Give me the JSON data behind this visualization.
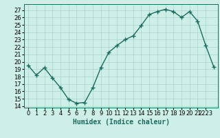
{
  "x": [
    0,
    1,
    2,
    3,
    4,
    5,
    6,
    7,
    8,
    9,
    10,
    11,
    12,
    13,
    14,
    15,
    16,
    17,
    18,
    19,
    20,
    21,
    22,
    23
  ],
  "y": [
    19.5,
    18.2,
    19.2,
    17.8,
    16.5,
    14.9,
    14.4,
    14.5,
    16.5,
    19.2,
    21.3,
    22.2,
    23.0,
    23.5,
    24.9,
    26.4,
    26.8,
    27.1,
    26.8,
    26.0,
    26.8,
    25.5,
    22.2,
    19.3
  ],
  "line_color": "#1a6b5e",
  "marker": "+",
  "marker_size": 4,
  "marker_linewidth": 1.0,
  "line_width": 1.0,
  "xlabel": "Humidex (Indice chaleur)",
  "xlabel_fontsize": 7,
  "ylabel_ticks": [
    14,
    15,
    16,
    17,
    18,
    19,
    20,
    21,
    22,
    23,
    24,
    25,
    26,
    27
  ],
  "ylim": [
    13.8,
    27.8
  ],
  "xlim": [
    -0.5,
    23.5
  ],
  "xtick_positions": [
    0,
    1,
    2,
    3,
    4,
    5,
    6,
    7,
    8,
    9,
    10,
    11,
    12,
    13,
    14,
    15,
    16,
    17,
    18,
    19,
    20,
    21,
    22
  ],
  "xtick_labels": [
    "0",
    "1",
    "2",
    "3",
    "4",
    "5",
    "6",
    "7",
    "8",
    "9",
    "10",
    "11",
    "12",
    "13",
    "14",
    "15",
    "16",
    "17",
    "18",
    "19",
    "20",
    "21",
    "2223"
  ],
  "background_color": "#ceeee8",
  "grid_color": "#aad4ce",
  "tick_fontsize": 6,
  "ytick_fontsize": 6
}
